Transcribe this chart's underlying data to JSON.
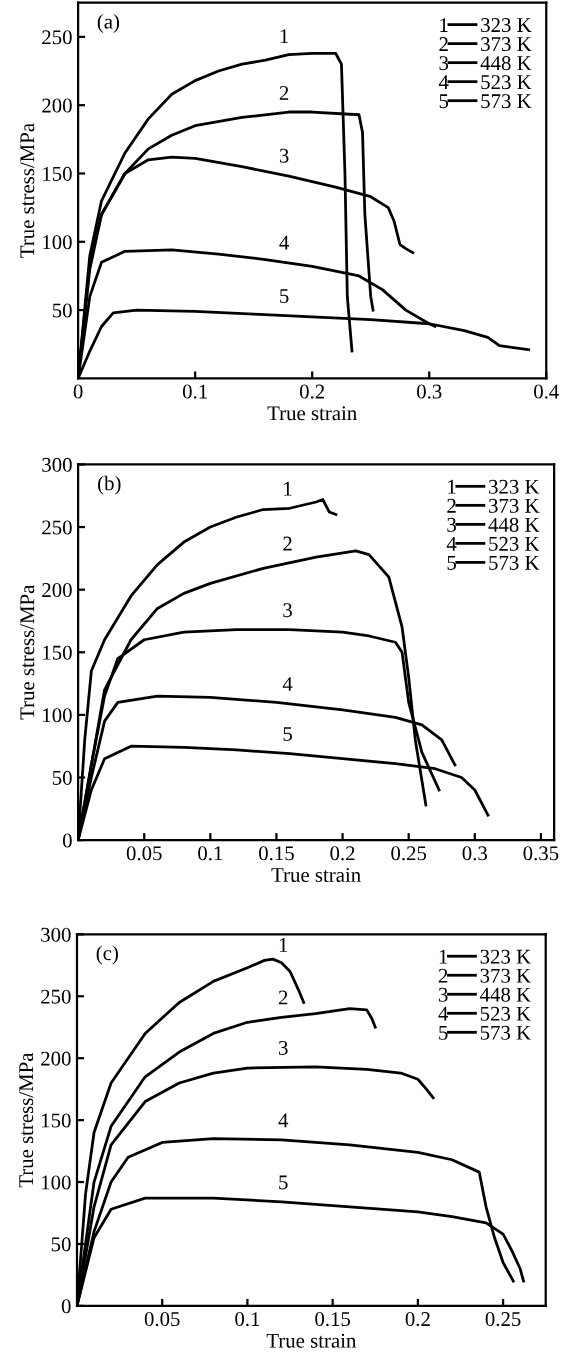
{
  "chart_data": [
    {
      "type": "line",
      "title": "(a)",
      "xlabel": "True strain",
      "ylabel": "True stress/MPa",
      "xlim": [
        0,
        0.4
      ],
      "ylim": [
        0,
        275
      ],
      "xticks": [
        0,
        0.1,
        0.2,
        0.3,
        0.4
      ],
      "yticks": [
        50,
        100,
        150,
        200,
        250
      ],
      "grid": false,
      "legend": "top right",
      "marker": "none",
      "line_style": "solid",
      "annotations": [
        "1",
        "2",
        "3",
        "4",
        "5"
      ],
      "series": [
        {
          "name": "323 K",
          "color": "#000000",
          "x": [
            0,
            0.01,
            0.02,
            0.04,
            0.06,
            0.08,
            0.1,
            0.12,
            0.14,
            0.16,
            0.18,
            0.2,
            0.22,
            0.225,
            0.228,
            0.23,
            0.234
          ],
          "values": [
            0,
            90,
            130,
            165,
            190,
            208,
            218,
            225,
            230,
            233,
            237,
            238,
            238,
            230,
            150,
            60,
            20
          ]
        },
        {
          "name": "373 K",
          "color": "#000000",
          "x": [
            0,
            0.01,
            0.02,
            0.04,
            0.06,
            0.08,
            0.1,
            0.14,
            0.18,
            0.2,
            0.24,
            0.243,
            0.245,
            0.25,
            0.252
          ],
          "values": [
            0,
            85,
            120,
            150,
            168,
            178,
            185,
            191,
            195,
            195,
            193,
            180,
            120,
            60,
            50
          ]
        },
        {
          "name": "448 K",
          "color": "#000000",
          "x": [
            0,
            0.01,
            0.02,
            0.04,
            0.06,
            0.08,
            0.1,
            0.14,
            0.18,
            0.22,
            0.25,
            0.265,
            0.27,
            0.275,
            0.28,
            0.286
          ],
          "values": [
            0,
            80,
            120,
            150,
            160,
            162,
            161,
            155,
            148,
            140,
            133,
            125,
            115,
            98,
            95,
            92
          ]
        },
        {
          "name": "523 K",
          "color": "#000000",
          "x": [
            0,
            0.01,
            0.02,
            0.04,
            0.08,
            0.12,
            0.16,
            0.2,
            0.24,
            0.26,
            0.28,
            0.3,
            0.305
          ],
          "values": [
            0,
            60,
            85,
            93,
            94,
            91,
            87,
            82,
            75,
            65,
            50,
            40,
            38
          ]
        },
        {
          "name": "573 K",
          "color": "#000000",
          "x": [
            0,
            0.01,
            0.02,
            0.03,
            0.05,
            0.1,
            0.15,
            0.2,
            0.25,
            0.3,
            0.33,
            0.35,
            0.36,
            0.385
          ],
          "values": [
            0,
            20,
            38,
            48,
            50,
            49,
            47,
            45,
            43,
            40,
            35,
            30,
            24,
            21
          ]
        }
      ]
    },
    {
      "type": "line",
      "title": "(b)",
      "xlabel": "True strain",
      "ylabel": "True stress/MPa",
      "xlim": [
        0,
        0.36
      ],
      "ylim": [
        0,
        300
      ],
      "xticks": [
        0.05,
        0.1,
        0.15,
        0.2,
        0.25,
        0.3,
        0.35
      ],
      "yticks": [
        0,
        50,
        100,
        150,
        200,
        250,
        300
      ],
      "grid": false,
      "legend": "top right",
      "marker": "none",
      "line_style": "solid",
      "annotations": [
        "1",
        "2",
        "3",
        "4",
        "5"
      ],
      "series": [
        {
          "name": "323 K",
          "color": "#000000",
          "x": [
            0,
            0.005,
            0.01,
            0.02,
            0.04,
            0.06,
            0.08,
            0.1,
            0.12,
            0.14,
            0.16,
            0.18,
            0.185,
            0.19,
            0.195
          ],
          "values": [
            0,
            80,
            135,
            160,
            195,
            220,
            238,
            250,
            258,
            264,
            265,
            270,
            272,
            262,
            260
          ]
        },
        {
          "name": "373 K",
          "color": "#000000",
          "x": [
            0,
            0.01,
            0.02,
            0.04,
            0.06,
            0.08,
            0.1,
            0.14,
            0.18,
            0.21,
            0.22,
            0.235,
            0.245,
            0.25,
            0.255,
            0.263
          ],
          "values": [
            0,
            60,
            120,
            160,
            185,
            197,
            205,
            217,
            226,
            231,
            228,
            210,
            170,
            130,
            80,
            28
          ]
        },
        {
          "name": "448 K",
          "color": "#000000",
          "x": [
            0,
            0.01,
            0.02,
            0.03,
            0.05,
            0.08,
            0.12,
            0.16,
            0.2,
            0.22,
            0.24,
            0.245,
            0.25,
            0.26,
            0.273
          ],
          "values": [
            0,
            60,
            115,
            145,
            160,
            166,
            168,
            168,
            166,
            163,
            158,
            150,
            110,
            70,
            40
          ]
        },
        {
          "name": "523 K",
          "color": "#000000",
          "x": [
            0,
            0.01,
            0.02,
            0.03,
            0.06,
            0.1,
            0.15,
            0.2,
            0.24,
            0.26,
            0.275,
            0.285
          ],
          "values": [
            0,
            50,
            95,
            110,
            115,
            114,
            110,
            104,
            98,
            92,
            80,
            60
          ]
        },
        {
          "name": "573 K",
          "color": "#000000",
          "x": [
            0,
            0.01,
            0.02,
            0.04,
            0.08,
            0.12,
            0.16,
            0.2,
            0.24,
            0.27,
            0.29,
            0.3,
            0.31
          ],
          "values": [
            0,
            40,
            65,
            75,
            74,
            72,
            69,
            65,
            61,
            57,
            50,
            40,
            20
          ]
        }
      ]
    },
    {
      "type": "line",
      "title": "(c)",
      "xlabel": "True strain",
      "ylabel": "True stress/MPa",
      "xlim": [
        0,
        0.275
      ],
      "ylim": [
        0,
        300
      ],
      "xticks": [
        0.05,
        0.1,
        0.15,
        0.2,
        0.25
      ],
      "yticks": [
        0,
        50,
        100,
        150,
        200,
        250,
        300
      ],
      "grid": false,
      "legend": "top right",
      "marker": "none",
      "line_style": "solid",
      "annotations": [
        "1",
        "2",
        "3",
        "4",
        "5"
      ],
      "series": [
        {
          "name": "323 K",
          "color": "#000000",
          "x": [
            0,
            0.005,
            0.01,
            0.02,
            0.04,
            0.06,
            0.08,
            0.1,
            0.11,
            0.115,
            0.12,
            0.125,
            0.13,
            0.133
          ],
          "values": [
            0,
            90,
            140,
            180,
            220,
            245,
            262,
            273,
            279,
            280,
            277,
            270,
            255,
            245
          ]
        },
        {
          "name": "373 K",
          "color": "#000000",
          "x": [
            0,
            0.01,
            0.02,
            0.04,
            0.06,
            0.08,
            0.1,
            0.12,
            0.14,
            0.16,
            0.17,
            0.173,
            0.175
          ],
          "values": [
            0,
            100,
            145,
            185,
            205,
            220,
            229,
            233,
            236,
            240,
            239,
            232,
            225
          ]
        },
        {
          "name": "448 K",
          "color": "#000000",
          "x": [
            0,
            0.01,
            0.02,
            0.04,
            0.06,
            0.08,
            0.1,
            0.14,
            0.17,
            0.19,
            0.2,
            0.205,
            0.209
          ],
          "values": [
            0,
            80,
            130,
            165,
            180,
            188,
            192,
            193,
            191,
            188,
            183,
            175,
            168
          ]
        },
        {
          "name": "523 K",
          "color": "#000000",
          "x": [
            0,
            0.01,
            0.02,
            0.03,
            0.05,
            0.08,
            0.12,
            0.16,
            0.2,
            0.22,
            0.236,
            0.24,
            0.245,
            0.25,
            0.256
          ],
          "values": [
            0,
            60,
            100,
            120,
            132,
            135,
            134,
            130,
            124,
            118,
            108,
            80,
            55,
            35,
            20
          ]
        },
        {
          "name": "573 K",
          "color": "#000000",
          "x": [
            0,
            0.01,
            0.02,
            0.04,
            0.08,
            0.12,
            0.16,
            0.2,
            0.22,
            0.24,
            0.25,
            0.255,
            0.26,
            0.262
          ],
          "values": [
            0,
            55,
            78,
            87,
            87,
            84,
            80,
            76,
            72,
            67,
            58,
            45,
            30,
            20
          ]
        }
      ]
    }
  ]
}
